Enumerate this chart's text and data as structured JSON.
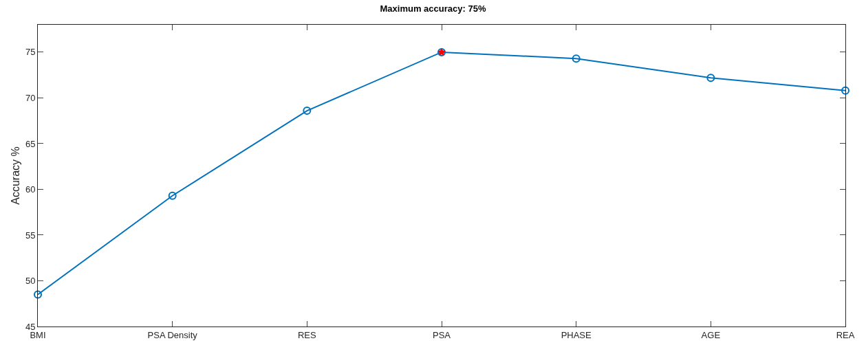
{
  "chart_data": {
    "type": "line",
    "title": "Maximum accuracy: 75%",
    "ylabel": "Accuracy %",
    "categories": [
      "BMI",
      "PSA Density",
      "RES",
      "PSA",
      "PHASE",
      "AGE",
      "REA"
    ],
    "series": [
      {
        "color": "#0072bd",
        "marker": "circle",
        "values": [
          48.5,
          59.3,
          68.6,
          75,
          74.3,
          72.2,
          70.8
        ]
      },
      {
        "type": "scatter",
        "color": "#ff0000",
        "marker": "star",
        "x": [
          "PSA"
        ],
        "values": [
          75
        ]
      }
    ],
    "ylim": [
      45,
      78
    ],
    "yticks": [
      45,
      50,
      55,
      60,
      65,
      70,
      75
    ],
    "grid": false,
    "line_style": "solid"
  }
}
